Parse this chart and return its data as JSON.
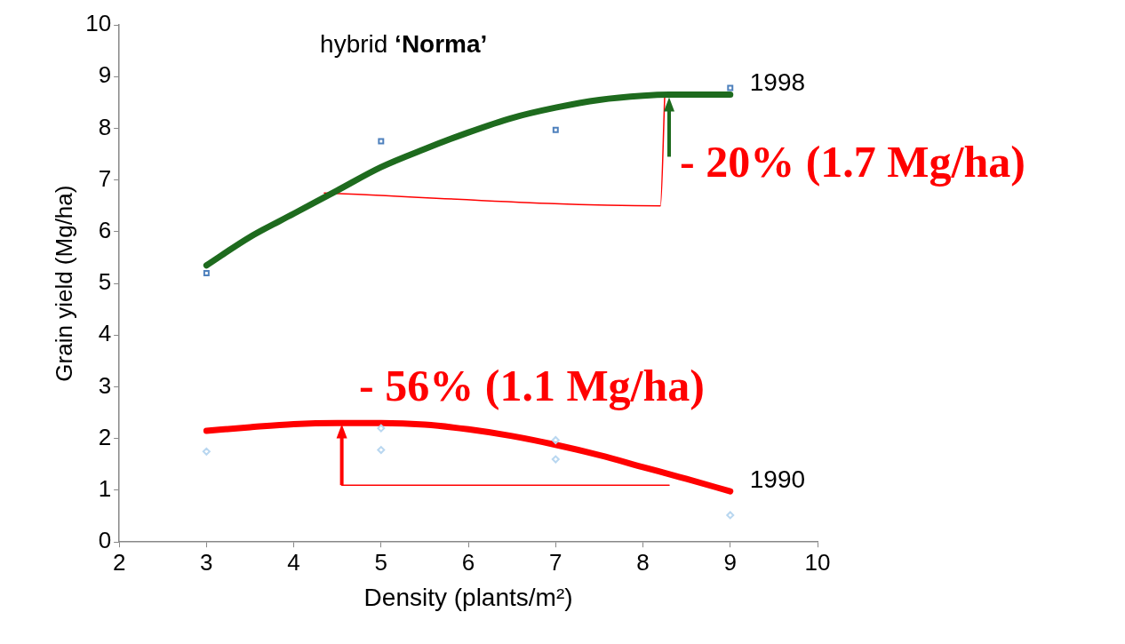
{
  "chart_data": {
    "type": "scatter",
    "title": "hybrid ‘Norma’",
    "xlabel": "Density (plants/m²)",
    "ylabel": "Grain yield (Mg/ha)",
    "xlim": [
      2,
      10
    ],
    "xticks": [
      2,
      3,
      4,
      5,
      6,
      7,
      8,
      9,
      10
    ],
    "ylim": [
      0,
      10
    ],
    "yticks": [
      0,
      1,
      2,
      3,
      4,
      5,
      6,
      7,
      8,
      9,
      10
    ],
    "grid": false,
    "legend": false,
    "series": [
      {
        "type": "scatter",
        "marker": "square",
        "color": "#4f81bd",
        "x": [
          3,
          5,
          7,
          9
        ],
        "values": [
          5.2,
          7.75,
          7.97,
          8.78
        ]
      },
      {
        "type": "scatter",
        "marker": "diamond",
        "color": "#b9d7f0",
        "x": [
          3,
          5,
          5,
          7,
          7,
          9
        ],
        "values": [
          1.75,
          2.2,
          1.78,
          1.97,
          1.6,
          0.52
        ]
      },
      {
        "type": "line",
        "name": "1998",
        "color": "#1e6b1e",
        "x": [
          3,
          3.5,
          4,
          4.5,
          5,
          5.5,
          6,
          6.5,
          7,
          7.5,
          8,
          8.3,
          9
        ],
        "values": [
          5.35,
          5.9,
          6.35,
          6.8,
          7.25,
          7.6,
          7.92,
          8.2,
          8.4,
          8.55,
          8.63,
          8.65,
          8.65
        ]
      },
      {
        "type": "line",
        "name": "1990",
        "color": "#ff0000",
        "x": [
          3,
          3.5,
          4,
          4.5,
          5,
          5.5,
          6,
          6.5,
          7,
          7.5,
          8,
          8.5,
          9
        ],
        "values": [
          2.15,
          2.22,
          2.28,
          2.3,
          2.3,
          2.27,
          2.18,
          2.05,
          1.88,
          1.68,
          1.45,
          1.22,
          0.98
        ]
      },
      {
        "type": "line",
        "color": "#ff0000",
        "x": [
          4.35,
          8.2,
          8.25
        ],
        "values": [
          6.75,
          6.5,
          8.65
        ]
      },
      {
        "type": "line",
        "color": "#ff0000",
        "x": [
          4.55,
          8.3
        ],
        "values": [
          1.1,
          1.1
        ]
      }
    ],
    "annotations": [
      "- 20% (1.7 Mg/ha)",
      "- 56% (1.1 Mg/ha)"
    ]
  }
}
